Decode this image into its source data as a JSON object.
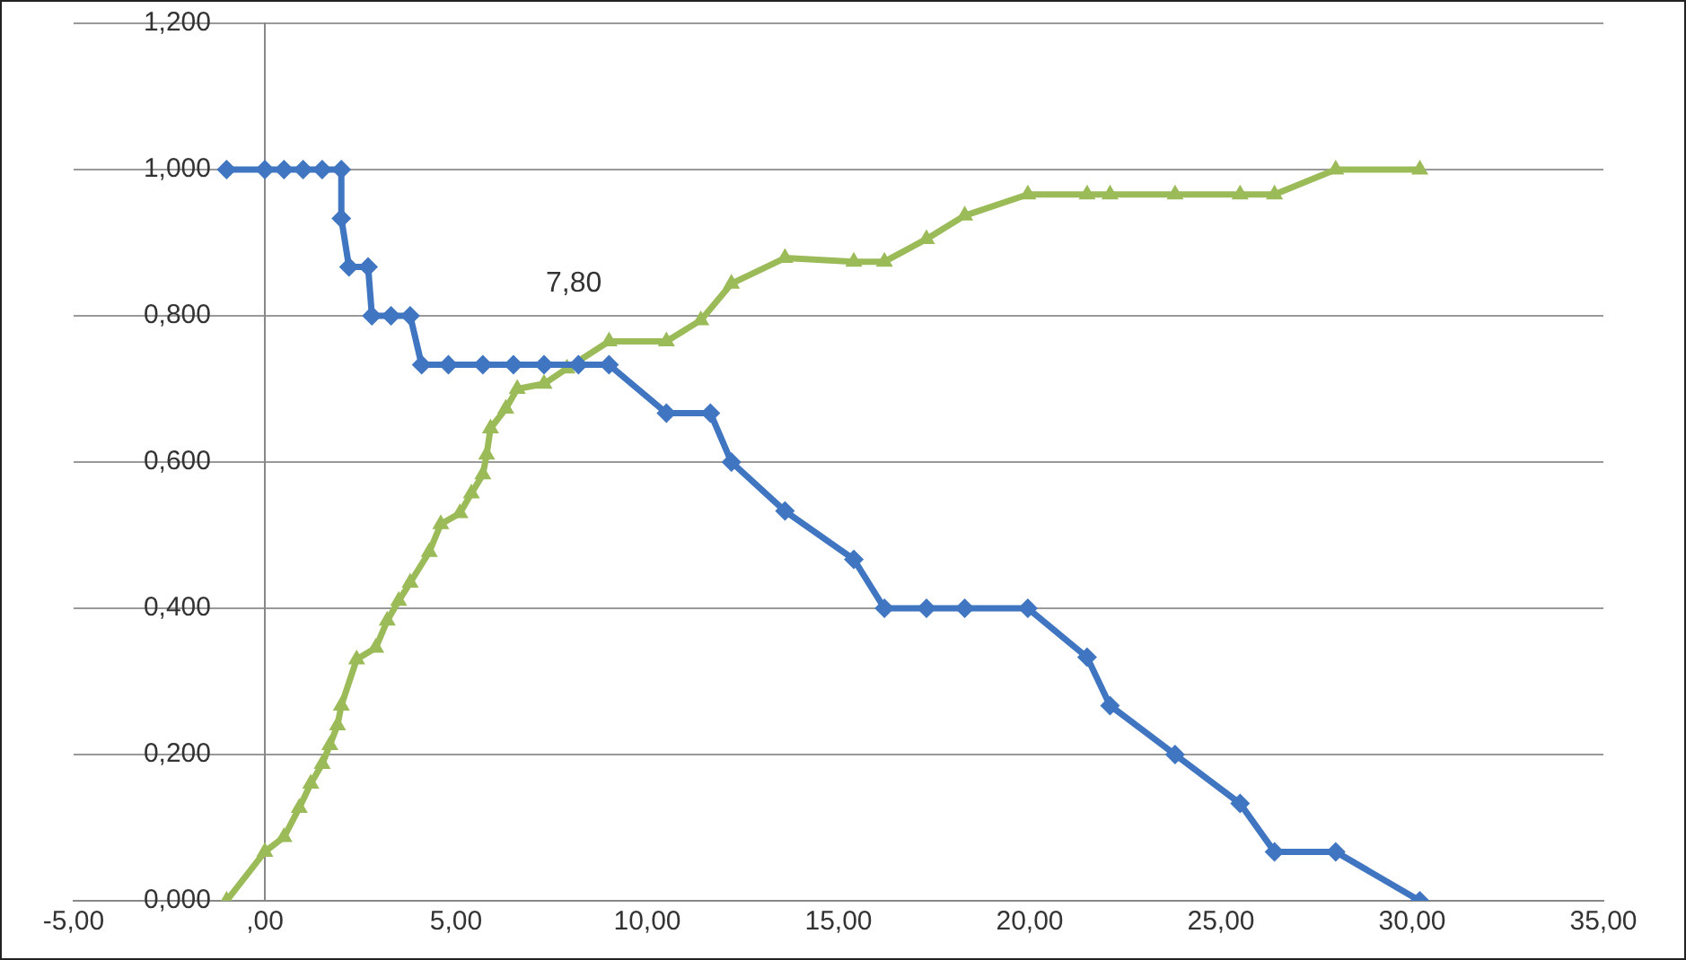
{
  "chart_data": {
    "type": "line",
    "xlim": [
      -5,
      35
    ],
    "xticks": [
      {
        "value": -5,
        "label": "-5,00"
      },
      {
        "value": 0,
        "label": ",00"
      },
      {
        "value": 5,
        "label": "5,00"
      },
      {
        "value": 10,
        "label": "10,00"
      },
      {
        "value": 15,
        "label": "15,00"
      },
      {
        "value": 20,
        "label": "20,00"
      },
      {
        "value": 25,
        "label": "25,00"
      },
      {
        "value": 30,
        "label": "30,00"
      },
      {
        "value": 35,
        "label": "35,00"
      }
    ],
    "ylim": [
      0,
      1.2
    ],
    "yticks": [
      {
        "value": 0,
        "label": "0,000"
      },
      {
        "value": 0.2,
        "label": "0,200"
      },
      {
        "value": 0.4,
        "label": "0,400"
      },
      {
        "value": 0.6,
        "label": "0,600"
      },
      {
        "value": 0.8,
        "label": "0,800"
      },
      {
        "value": 1,
        "label": "1,000"
      },
      {
        "value": 1.2,
        "label": "1,200"
      }
    ],
    "grid": "y",
    "legend": false,
    "line_style": "solid",
    "annotations": [
      "7,80"
    ],
    "series": [
      {
        "color": "#3f75c1",
        "marker": "diamond",
        "x": [
          -1,
          0,
          0.5,
          1,
          1.5,
          2,
          2,
          2.2,
          2.7,
          2.8,
          3.3,
          3.8,
          4.1,
          4.8,
          5.7,
          6.5,
          7.3,
          8.2,
          9,
          10.5,
          11.65,
          12.2,
          13.6,
          15.4,
          16.2,
          17.3,
          18.3,
          19.95,
          21.5,
          22.1,
          23.8,
          25.5,
          26.4,
          28,
          30.2
        ],
        "values": [
          1,
          1,
          1,
          1,
          1,
          1,
          0.933,
          0.867,
          0.867,
          0.8,
          0.8,
          0.8,
          0.733,
          0.733,
          0.733,
          0.733,
          0.733,
          0.733,
          0.733,
          0.667,
          0.667,
          0.6,
          0.533,
          0.467,
          0.4,
          0.4,
          0.4,
          0.4,
          0.333,
          0.267,
          0.2,
          0.133,
          0.067,
          0.067,
          0
        ]
      },
      {
        "color": "#9bbb59",
        "marker": "triangle",
        "x": [
          -1,
          0,
          0.5,
          0.9,
          1.2,
          1.5,
          1.7,
          1.9,
          2,
          2.4,
          2.9,
          3.2,
          3.5,
          3.8,
          4.3,
          4.6,
          5.1,
          5.4,
          5.7,
          5.8,
          5.9,
          6.3,
          6.6,
          7.3,
          7.9,
          9,
          10.5,
          11.4,
          12.2,
          13.6,
          15.4,
          16.2,
          17.3,
          18.3,
          19.95,
          21.5,
          22.1,
          23.8,
          25.5,
          26.4,
          28,
          30.2
        ],
        "values": [
          0,
          0.067,
          0.087,
          0.127,
          0.16,
          0.187,
          0.213,
          0.24,
          0.267,
          0.33,
          0.346,
          0.383,
          0.41,
          0.435,
          0.477,
          0.515,
          0.53,
          0.557,
          0.583,
          0.61,
          0.646,
          0.673,
          0.7,
          0.707,
          0.728,
          0.765,
          0.765,
          0.794,
          0.844,
          0.879,
          0.874,
          0.874,
          0.905,
          0.937,
          0.966,
          0.966,
          0.966,
          0.966,
          0.966,
          0.966,
          1,
          1
        ]
      }
    ]
  }
}
